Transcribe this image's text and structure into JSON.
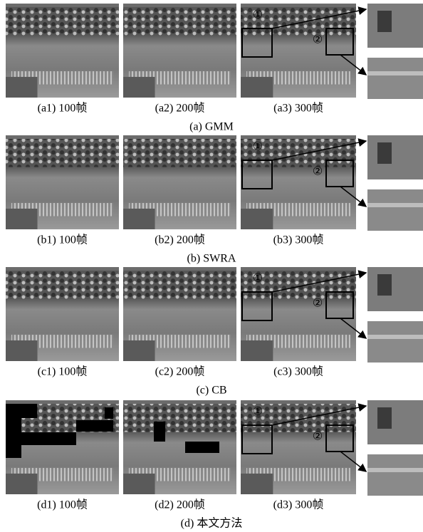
{
  "figure": {
    "rows": [
      {
        "caption": "(a)  GMM",
        "panels": [
          "(a1)  100帧",
          "(a2)  200帧",
          "(a3)  300帧"
        ],
        "markers": [
          "①",
          "②"
        ]
      },
      {
        "caption": "(b)  SWRA",
        "panels": [
          "(b1)  100帧",
          "(b2)  200帧",
          "(b3)  300帧"
        ],
        "markers": [
          "①",
          "②"
        ]
      },
      {
        "caption": "(c)  CB",
        "panels": [
          "(c1)  100帧",
          "(c2)  200帧",
          "(c3)  300帧"
        ],
        "markers": [
          "①",
          "②"
        ]
      },
      {
        "caption": "(d)  本文方法",
        "panels": [
          "(d1)  100帧",
          "(d2)  200帧",
          "(d3)  300帧"
        ],
        "markers": [
          "①",
          "②"
        ]
      }
    ]
  }
}
